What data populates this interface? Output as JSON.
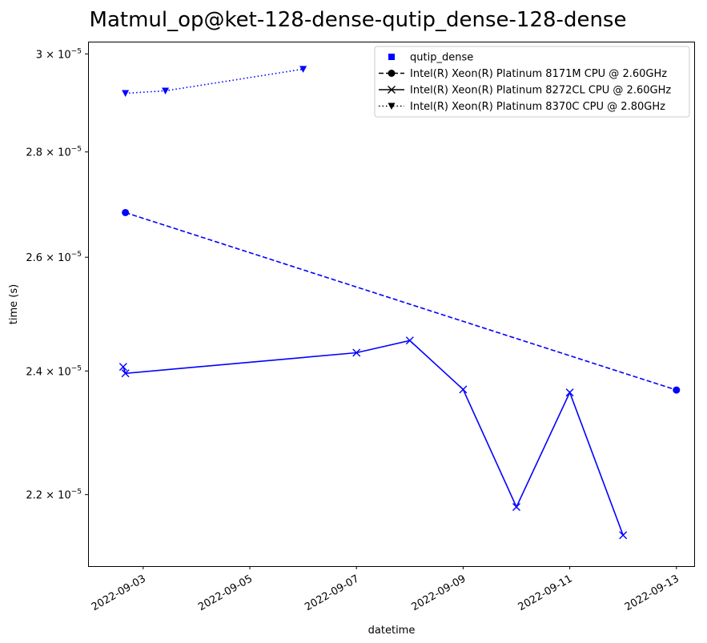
{
  "chart_data": {
    "type": "line",
    "title": "Matmul_op@ket-128-dense-qutip_dense-128-dense",
    "xlabel": "datetime",
    "ylabel": "time (s)",
    "y_scale": "log",
    "xlim": [
      "2022-09-01T23:12",
      "2022-09-13T08:00"
    ],
    "ylim": [
      2.092e-05,
      3.026e-05
    ],
    "x_ticks": [
      "2022-09-03",
      "2022-09-05",
      "2022-09-07",
      "2022-09-09",
      "2022-09-11",
      "2022-09-13"
    ],
    "y_ticks": [
      {
        "value": 2.2e-05,
        "mantissa": "2.2",
        "exp": "−5"
      },
      {
        "value": 2.4e-05,
        "mantissa": "2.4",
        "exp": "−5"
      },
      {
        "value": 2.6e-05,
        "mantissa": "2.6",
        "exp": "−5"
      },
      {
        "value": 2.8e-05,
        "mantissa": "2.8",
        "exp": "−5"
      },
      {
        "value": 3e-05,
        "mantissa": "3",
        "exp": "−5"
      }
    ],
    "y_tick_base": "10",
    "y_tick_times": "×",
    "legend_position": "top-right",
    "legend": [
      {
        "label": "qutip_dense",
        "style": "square-marker"
      },
      {
        "label": "Intel(R) Xeon(R) Platinum 8171M CPU @ 2.60GHz",
        "style": "dashed-circle"
      },
      {
        "label": "Intel(R) Xeon(R) Platinum 8272CL CPU @ 2.60GHz",
        "style": "solid-x"
      },
      {
        "label": "Intel(R) Xeon(R) Platinum 8370C CPU @ 2.80GHz",
        "style": "dotted-triangle"
      }
    ],
    "color": "#0000ff",
    "series": [
      {
        "name": "Intel(R) Xeon(R) Platinum 8171M CPU @ 2.60GHz",
        "line": "dashed",
        "marker": "circle",
        "points": [
          {
            "x": "2022-09-02T16:00",
            "y": 2.683e-05
          },
          {
            "x": "2022-09-13T00:00",
            "y": 2.368e-05
          }
        ]
      },
      {
        "name": "Intel(R) Xeon(R) Platinum 8272CL CPU @ 2.60GHz",
        "line": "solid",
        "marker": "x",
        "points": [
          {
            "x": "2022-09-02T15:00",
            "y": 2.407e-05
          },
          {
            "x": "2022-09-02T16:00",
            "y": 2.396e-05
          },
          {
            "x": "2022-09-07T00:00",
            "y": 2.431e-05
          },
          {
            "x": "2022-09-08T00:00",
            "y": 2.452e-05
          },
          {
            "x": "2022-09-09T00:00",
            "y": 2.369e-05
          },
          {
            "x": "2022-09-10T00:00",
            "y": 2.181e-05
          },
          {
            "x": "2022-09-11T00:00",
            "y": 2.364e-05
          },
          {
            "x": "2022-09-12T00:00",
            "y": 2.138e-05
          }
        ]
      },
      {
        "name": "Intel(R) Xeon(R) Platinum 8370C CPU @ 2.80GHz",
        "line": "dotted",
        "marker": "triangle-down",
        "points": [
          {
            "x": "2022-09-02T16:00",
            "y": 2.918e-05
          },
          {
            "x": "2022-09-03T10:00",
            "y": 2.923e-05
          },
          {
            "x": "2022-09-06T00:00",
            "y": 2.968e-05
          }
        ]
      }
    ]
  }
}
